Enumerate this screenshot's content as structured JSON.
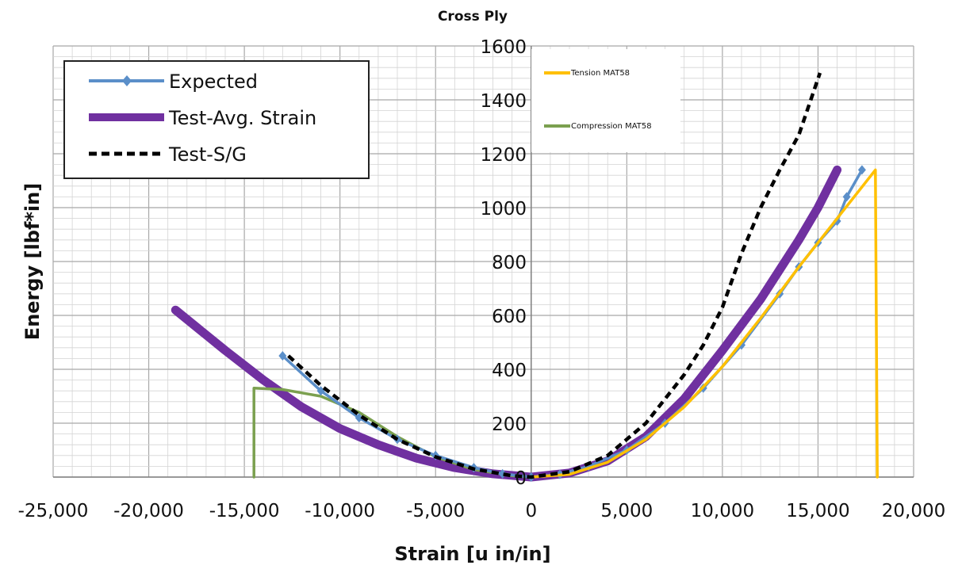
{
  "chart_data": {
    "type": "line",
    "title": "Cross Ply",
    "xlabel": "Strain [u in/in]",
    "ylabel": "Energy [lbf*in]",
    "xlim": [
      -25000,
      20000
    ],
    "ylim": [
      0,
      1600
    ],
    "x_ticks": [
      "-25,000",
      "-20,000",
      "-15,000",
      "-10,000",
      "-5,000",
      "0",
      "5,000",
      "10,000",
      "15,000",
      "20,000"
    ],
    "y_ticks": [
      "0",
      "200",
      "400",
      "600",
      "800",
      "1000",
      "1200",
      "1400",
      "1600"
    ],
    "grid": true,
    "legend_placement": "top-left",
    "secondary_legend_placement": "top-center",
    "series": [
      {
        "name": "Expected",
        "color": "#5B8FC9",
        "style": "line-diamond",
        "points": [
          [
            -13000,
            450
          ],
          [
            -11000,
            320
          ],
          [
            -9000,
            220
          ],
          [
            -7000,
            140
          ],
          [
            -5000,
            80
          ],
          [
            -3000,
            35
          ],
          [
            -1500,
            12
          ],
          [
            0,
            0
          ],
          [
            1500,
            10
          ],
          [
            3000,
            40
          ],
          [
            5000,
            100
          ],
          [
            7000,
            200
          ],
          [
            9000,
            330
          ],
          [
            11000,
            490
          ],
          [
            13000,
            680
          ],
          [
            14000,
            780
          ],
          [
            15000,
            870
          ],
          [
            16000,
            950
          ],
          [
            16500,
            1040
          ],
          [
            17300,
            1140
          ]
        ]
      },
      {
        "name": "Test-Avg. Strain",
        "color": "#7030A0",
        "style": "thick-line",
        "points": [
          [
            -18600,
            620
          ],
          [
            -16000,
            470
          ],
          [
            -14000,
            360
          ],
          [
            -12000,
            260
          ],
          [
            -10000,
            180
          ],
          [
            -8000,
            120
          ],
          [
            -6000,
            70
          ],
          [
            -4000,
            35
          ],
          [
            -2000,
            12
          ],
          [
            0,
            0
          ],
          [
            2000,
            15
          ],
          [
            4000,
            60
          ],
          [
            6000,
            150
          ],
          [
            8000,
            290
          ],
          [
            10000,
            470
          ],
          [
            12000,
            660
          ],
          [
            14000,
            880
          ],
          [
            15000,
            1000
          ],
          [
            16000,
            1140
          ]
        ]
      },
      {
        "name": "Test-S/G",
        "color": "#000000",
        "style": "dashed",
        "points": [
          [
            -12700,
            450
          ],
          [
            -11000,
            340
          ],
          [
            -9000,
            230
          ],
          [
            -7000,
            140
          ],
          [
            -5000,
            75
          ],
          [
            -3000,
            30
          ],
          [
            -1000,
            5
          ],
          [
            0,
            0
          ],
          [
            2000,
            20
          ],
          [
            4000,
            80
          ],
          [
            6000,
            200
          ],
          [
            8000,
            380
          ],
          [
            9000,
            490
          ],
          [
            10000,
            630
          ],
          [
            11000,
            830
          ],
          [
            12000,
            1000
          ],
          [
            13000,
            1140
          ],
          [
            14000,
            1270
          ],
          [
            15100,
            1500
          ]
        ]
      },
      {
        "name": "Tension MAT58",
        "color": "#FFC000",
        "style": "line",
        "points": [
          [
            0,
            0
          ],
          [
            2000,
            10
          ],
          [
            4000,
            55
          ],
          [
            6000,
            140
          ],
          [
            8000,
            260
          ],
          [
            10000,
            410
          ],
          [
            12000,
            590
          ],
          [
            14000,
            780
          ],
          [
            16000,
            960
          ],
          [
            18000,
            1140
          ],
          [
            18100,
            0
          ]
        ]
      },
      {
        "name": "Compression MAT58",
        "color": "#7BA04F",
        "style": "line",
        "points": [
          [
            -14500,
            0
          ],
          [
            -14500,
            330
          ],
          [
            -13000,
            325
          ],
          [
            -11000,
            300
          ],
          [
            -9000,
            240
          ],
          [
            -7000,
            150
          ],
          [
            -5000,
            75
          ],
          [
            -3000,
            28
          ],
          [
            -1000,
            5
          ],
          [
            0,
            0
          ]
        ]
      }
    ]
  }
}
